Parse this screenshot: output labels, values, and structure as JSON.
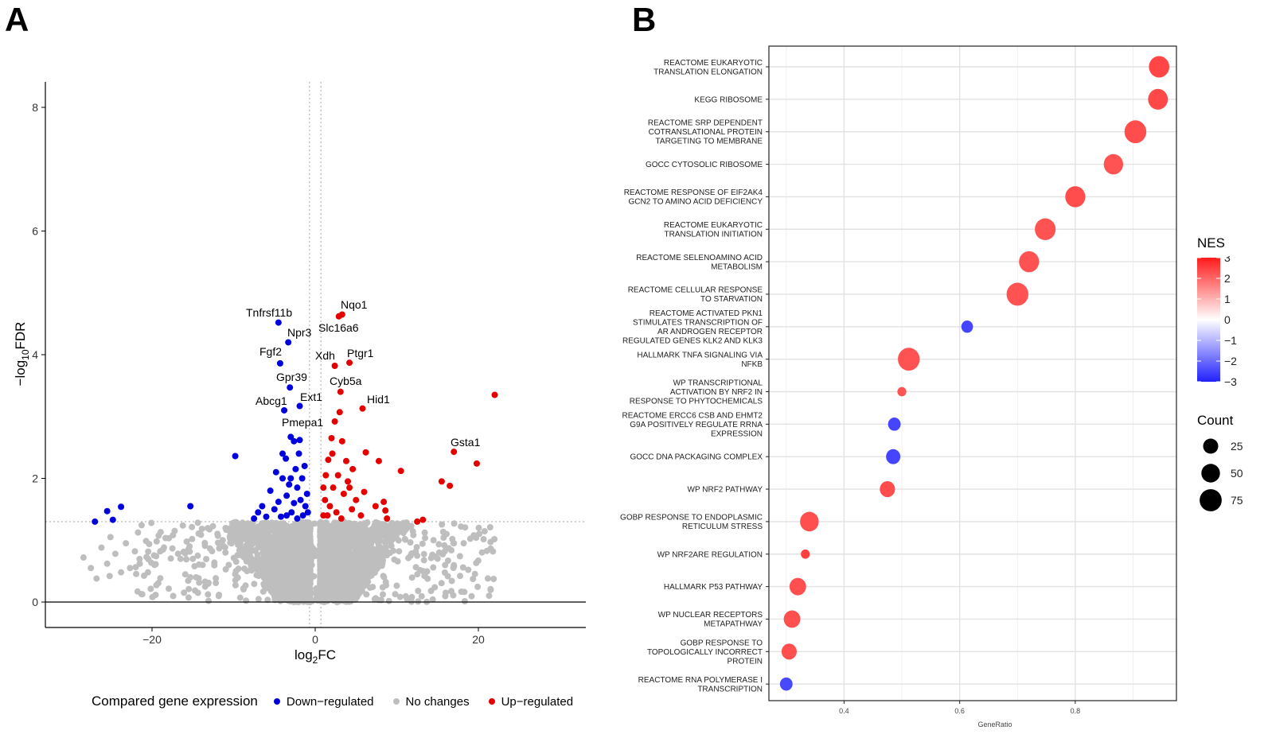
{
  "panels": {
    "a_label": "A",
    "b_label": "B"
  },
  "colors": {
    "down": "#0000dd",
    "none": "#bebebe",
    "up": "#e50000",
    "nes_low": "#2020ff",
    "nes_mid": "#ffffff",
    "nes_high": "#ff1a1a"
  },
  "chart_data": [
    {
      "type": "scatter",
      "title": "",
      "xlabel": "log2FC",
      "ylabel": "−log10FDR",
      "xlim": [
        -33,
        33
      ],
      "ylim": [
        -0.4,
        8.4
      ],
      "xticks": [
        -20,
        0,
        20
      ],
      "xtick_labels": [
        "−20",
        "0",
        "20"
      ],
      "yticks": [
        0,
        2,
        4,
        6,
        8
      ],
      "thresholds": {
        "fdr_line": 1.3,
        "fc_lines": [
          -0.7,
          0.7
        ]
      },
      "legend": {
        "title": "Compared gene expression",
        "items": [
          "Down−regulated",
          "No changes",
          "Up−regulated"
        ],
        "position": "bottom"
      },
      "labeled_genes": [
        {
          "name": "Tnfrsf11b",
          "x": -4.5,
          "y": 4.52,
          "group": "down"
        },
        {
          "name": "Npr3",
          "x": -3.3,
          "y": 4.2,
          "group": "down"
        },
        {
          "name": "Fgf2",
          "x": -4.3,
          "y": 3.86,
          "group": "down"
        },
        {
          "name": "Gpr39",
          "x": -3.1,
          "y": 3.47,
          "group": "down"
        },
        {
          "name": "Abcg1",
          "x": -3.8,
          "y": 3.1,
          "group": "down"
        },
        {
          "name": "Ext1",
          "x": -1.9,
          "y": 3.17,
          "group": "down"
        },
        {
          "name": "Pmepa1",
          "x": -3.0,
          "y": 2.67,
          "group": "down"
        },
        {
          "name": "Nqo1",
          "x": 3.3,
          "y": 4.65,
          "group": "up"
        },
        {
          "name": "Slc16a6",
          "x": 2.9,
          "y": 4.62,
          "group": "up"
        },
        {
          "name": "Xdh",
          "x": 2.4,
          "y": 3.82,
          "group": "up"
        },
        {
          "name": "Ptgr1",
          "x": 4.2,
          "y": 3.87,
          "group": "up"
        },
        {
          "name": "Cyb5a",
          "x": 3.1,
          "y": 3.4,
          "group": "up"
        },
        {
          "name": "Hid1",
          "x": 5.8,
          "y": 3.13,
          "group": "up"
        },
        {
          "name": "Gsta1",
          "x": 17.0,
          "y": 2.43,
          "group": "up"
        }
      ],
      "down_points": [
        [
          -27,
          1.3
        ],
        [
          -25.5,
          1.47
        ],
        [
          -24.8,
          1.33
        ],
        [
          -23.8,
          1.54
        ],
        [
          -15.3,
          1.55
        ],
        [
          -9.8,
          2.36
        ],
        [
          -7.5,
          1.35
        ],
        [
          -7,
          1.45
        ],
        [
          -6.5,
          1.55
        ],
        [
          -6,
          1.38
        ],
        [
          -5.5,
          1.8
        ],
        [
          -5,
          1.5
        ],
        [
          -4.8,
          2.1
        ],
        [
          -4.5,
          1.62
        ],
        [
          -4,
          2.4
        ],
        [
          -4,
          2.0
        ],
        [
          -3.6,
          2.32
        ],
        [
          -3.5,
          1.72
        ],
        [
          -3.2,
          1.9
        ],
        [
          -3,
          2.0
        ],
        [
          -2.9,
          1.45
        ],
        [
          -2.6,
          2.6
        ],
        [
          -2.4,
          2.15
        ],
        [
          -2.2,
          1.85
        ],
        [
          -2,
          2.4
        ],
        [
          -1.8,
          1.65
        ],
        [
          -1.6,
          2.0
        ],
        [
          -1.5,
          1.4
        ],
        [
          -1.3,
          2.2
        ],
        [
          -1.2,
          1.55
        ],
        [
          -1.0,
          1.75
        ],
        [
          -0.9,
          1.45
        ],
        [
          -2.6,
          1.6
        ],
        [
          -3.5,
          1.4
        ],
        [
          -1.9,
          2.62
        ],
        [
          -4.2,
          1.38
        ],
        [
          -2.2,
          1.35
        ]
      ],
      "up_points": [
        [
          22,
          3.35
        ],
        [
          19.8,
          2.24
        ],
        [
          16.5,
          1.88
        ],
        [
          15.5,
          1.95
        ],
        [
          13.2,
          1.33
        ],
        [
          12.5,
          1.3
        ],
        [
          10.5,
          2.12
        ],
        [
          8.4,
          1.62
        ],
        [
          8.6,
          1.48
        ],
        [
          8.8,
          1.35
        ],
        [
          7.8,
          2.28
        ],
        [
          7.4,
          1.55
        ],
        [
          6.2,
          2.42
        ],
        [
          6,
          1.78
        ],
        [
          5.6,
          1.4
        ],
        [
          5,
          1.65
        ],
        [
          4.6,
          2.15
        ],
        [
          4.5,
          1.5
        ],
        [
          4,
          1.95
        ],
        [
          3.8,
          2.28
        ],
        [
          3.5,
          1.75
        ],
        [
          3.3,
          2.6
        ],
        [
          3,
          3.07
        ],
        [
          2.8,
          2.05
        ],
        [
          2.6,
          1.45
        ],
        [
          2.4,
          2.92
        ],
        [
          2.2,
          1.85
        ],
        [
          2,
          2.65
        ],
        [
          1.8,
          1.55
        ],
        [
          1.6,
          2.3
        ],
        [
          1.5,
          1.4
        ],
        [
          1.3,
          2.05
        ],
        [
          1.2,
          1.65
        ],
        [
          1.0,
          1.85
        ],
        [
          1.0,
          1.4
        ],
        [
          2.1,
          2.4
        ],
        [
          3.2,
          1.35
        ],
        [
          4.2,
          1.85
        ]
      ]
    },
    {
      "type": "scatter",
      "title": "",
      "xlabel": "GeneRatio",
      "ylabel": "",
      "xlim": [
        0.27,
        0.975
      ],
      "xticks": [
        0.4,
        0.6,
        0.8
      ],
      "color_legend": {
        "title": "NES",
        "range": [
          -3,
          3
        ],
        "ticks": [
          "3",
          "2",
          "1",
          "0",
          "−1",
          "−2",
          "−3"
        ]
      },
      "size_legend": {
        "title": "Count",
        "values": [
          25,
          50,
          75
        ]
      },
      "terms": [
        {
          "lines": [
            "REACTOME EUKARYOTIC",
            "TRANSLATION ELONGATION"
          ],
          "gene_ratio": 0.945,
          "nes": 2.6,
          "count": 80
        },
        {
          "lines": [
            "KEGG RIBOSOME"
          ],
          "gene_ratio": 0.943,
          "nes": 2.55,
          "count": 76
        },
        {
          "lines": [
            "REACTOME SRP DEPENDENT",
            "COTRANSLATIONAL PROTEIN",
            "TARGETING TO MEMBRANE"
          ],
          "gene_ratio": 0.904,
          "nes": 2.5,
          "count": 88
        },
        {
          "lines": [
            "GOCC CYTOSOLIC RIBOSOME"
          ],
          "gene_ratio": 0.866,
          "nes": 2.4,
          "count": 74
        },
        {
          "lines": [
            "REACTOME RESPONSE OF EIF2AK4",
            "GCN2 TO AMINO ACID DEFICIENCY"
          ],
          "gene_ratio": 0.8,
          "nes": 2.5,
          "count": 78
        },
        {
          "lines": [
            "REACTOME EUKARYOTIC",
            "TRANSLATION INITIATION"
          ],
          "gene_ratio": 0.748,
          "nes": 2.4,
          "count": 82
        },
        {
          "lines": [
            "REACTOME SELENOAMINO ACID",
            "METABOLISM"
          ],
          "gene_ratio": 0.72,
          "nes": 2.4,
          "count": 78
        },
        {
          "lines": [
            "REACTOME CELLULAR RESPONSE",
            "TO STARVATION"
          ],
          "gene_ratio": 0.7,
          "nes": 2.4,
          "count": 88
        },
        {
          "lines": [
            "REACTOME ACTIVATED PKN1",
            "STIMULATES TRANSCRIPTION OF",
            "AR ANDROGEN RECEPTOR",
            "REGULATED GENES KLK2 AND KLK3"
          ],
          "gene_ratio": 0.613,
          "nes": -2.6,
          "count": 30
        },
        {
          "lines": [
            "HALLMARK TNFA SIGNALING VIA",
            "NFKB"
          ],
          "gene_ratio": 0.512,
          "nes": 2.4,
          "count": 88
        },
        {
          "lines": [
            "WP TRANSCRIPTIONAL",
            "ACTIVATION BY NRF2 IN",
            "RESPONSE TO PHYTOCHEMICALS"
          ],
          "gene_ratio": 0.5,
          "nes": 2.4,
          "count": 14
        },
        {
          "lines": [
            "REACTOME ERCC6 CSB AND EHMT2",
            "G9A POSITIVELY REGULATE RRNA",
            "EXPRESSION"
          ],
          "gene_ratio": 0.487,
          "nes": -2.6,
          "count": 35
        },
        {
          "lines": [
            "GOCC DNA PACKAGING COMPLEX"
          ],
          "gene_ratio": 0.485,
          "nes": -2.6,
          "count": 45
        },
        {
          "lines": [
            "WP NRF2 PATHWAY"
          ],
          "gene_ratio": 0.475,
          "nes": 2.5,
          "count": 50
        },
        {
          "lines": [
            "GOBP RESPONSE TO ENDOPLASMIC",
            "RETICULUM STRESS"
          ],
          "gene_ratio": 0.34,
          "nes": 2.45,
          "count": 70
        },
        {
          "lines": [
            "WP NRF2ARE REGULATION"
          ],
          "gene_ratio": 0.333,
          "nes": 2.7,
          "count": 14
        },
        {
          "lines": [
            "HALLMARK P53 PATHWAY"
          ],
          "gene_ratio": 0.32,
          "nes": 2.45,
          "count": 58
        },
        {
          "lines": [
            "WP NUCLEAR RECEPTORS",
            "METAPATHWAY"
          ],
          "gene_ratio": 0.31,
          "nes": 2.45,
          "count": 58
        },
        {
          "lines": [
            "GOBP RESPONSE TO",
            "TOPOLOGICALLY INCORRECT",
            "PROTEIN"
          ],
          "gene_ratio": 0.305,
          "nes": 2.45,
          "count": 50
        },
        {
          "lines": [
            "REACTOME RNA POLYMERASE I",
            "TRANSCRIPTION"
          ],
          "gene_ratio": 0.3,
          "nes": -2.55,
          "count": 35
        }
      ]
    }
  ]
}
